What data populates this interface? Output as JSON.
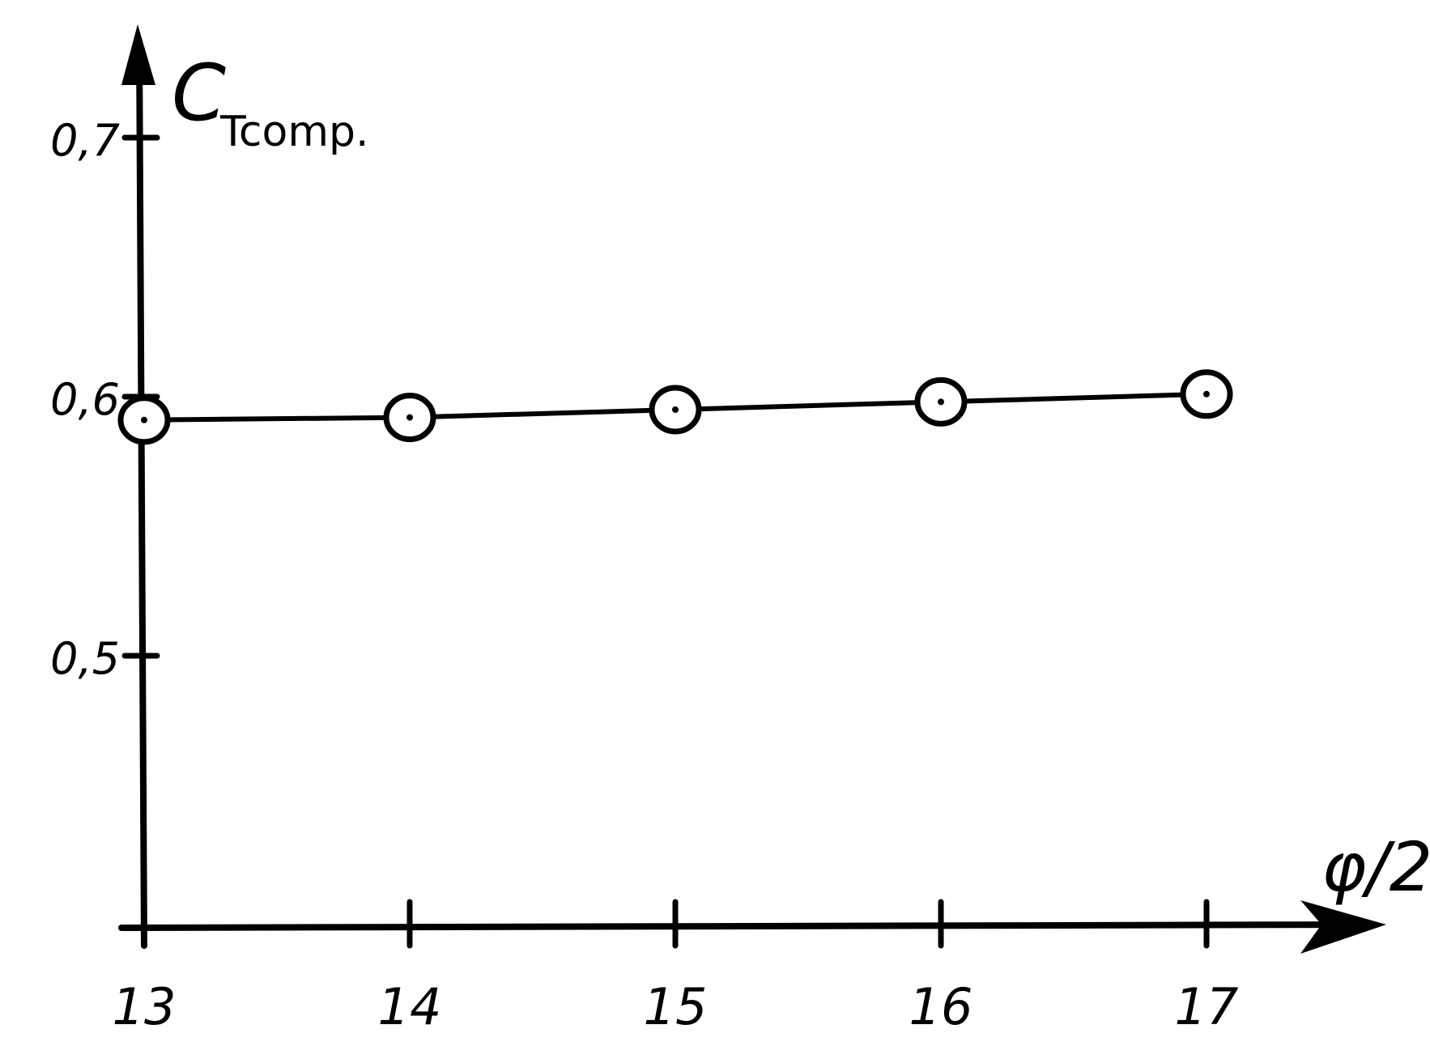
{
  "chart_data": {
    "type": "line",
    "ylabel": "C",
    "ylabel_subscript": "Tcomp.",
    "xlabel": "φ/2",
    "x_ticks": [
      "13",
      "14",
      "15",
      "16",
      "17"
    ],
    "y_ticks": [
      {
        "value": 0.5,
        "label": "0,5"
      },
      {
        "value": 0.6,
        "label": "0,6"
      },
      {
        "value": 0.7,
        "label": "0,7"
      }
    ],
    "xlim": [
      13,
      17
    ],
    "ylim": [
      0.4,
      0.72
    ],
    "grid": false,
    "series": [
      {
        "x": [
          13,
          14,
          15,
          16,
          17
        ],
        "y": [
          0.591,
          0.592,
          0.595,
          0.598,
          0.601
        ]
      }
    ]
  }
}
